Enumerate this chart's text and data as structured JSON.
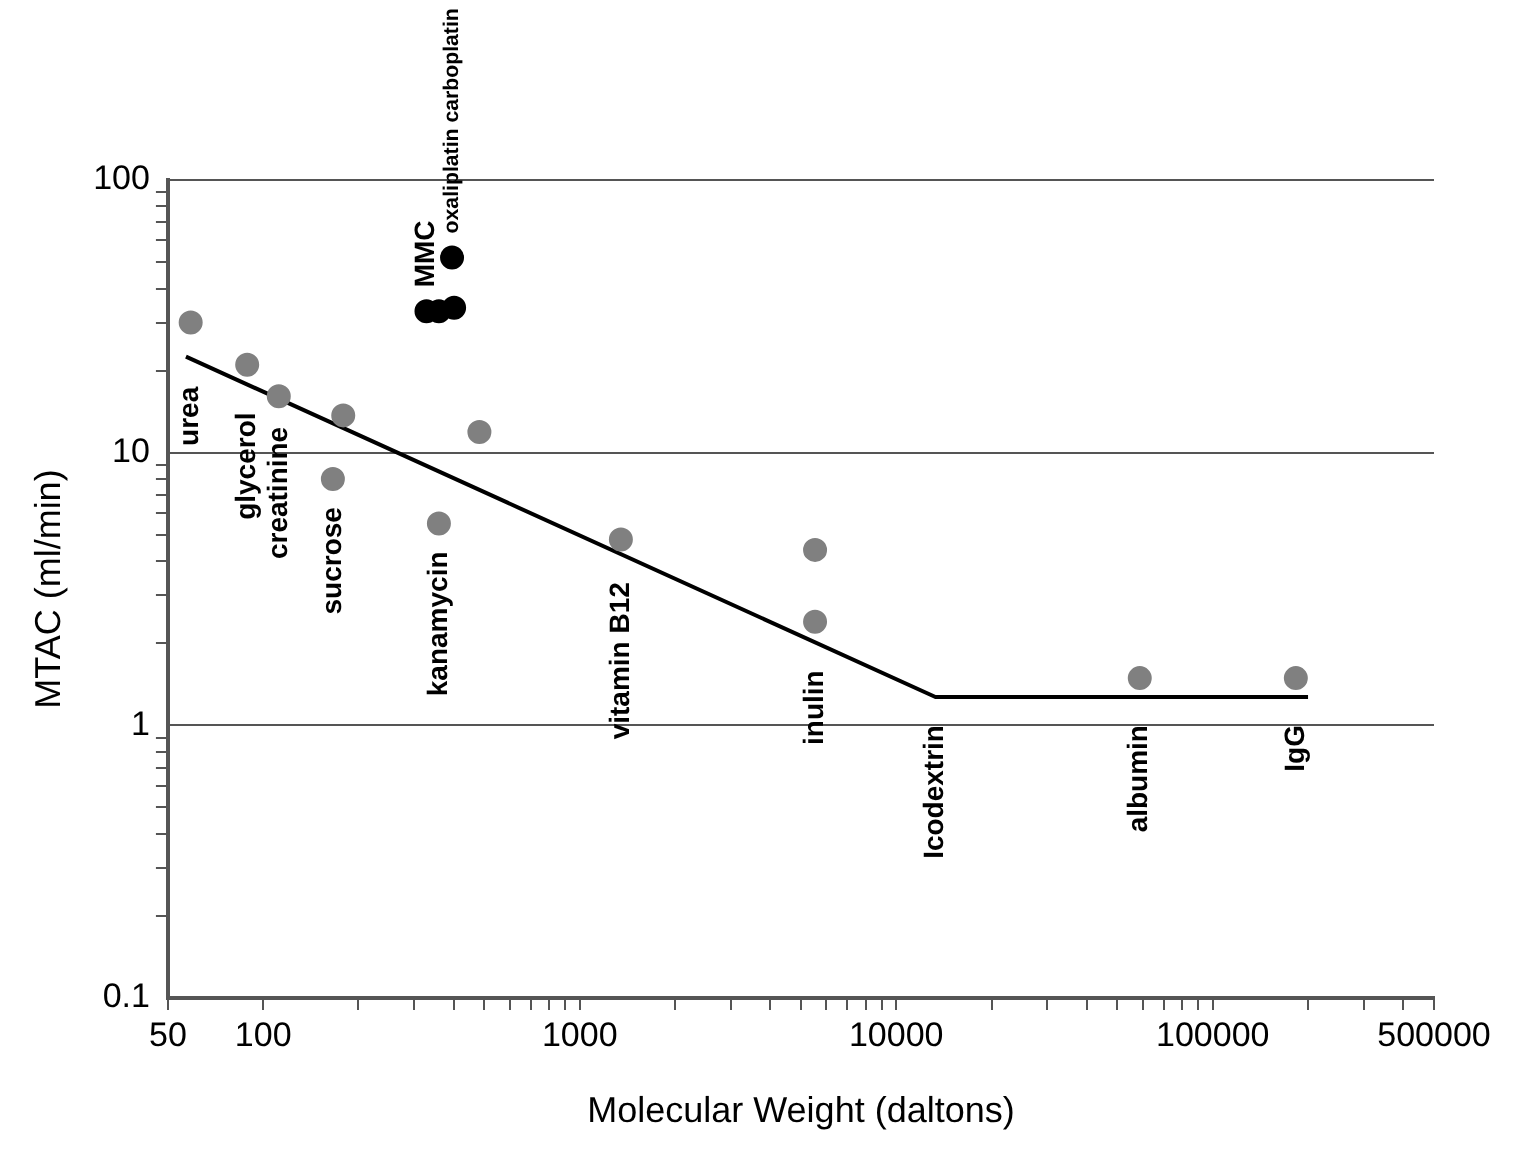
{
  "chart_data": {
    "type": "scatter",
    "xlabel": "Molecular Weight (daltons)",
    "ylabel": "MTAC (ml/min)",
    "log": "xy",
    "grid": "y",
    "legend": false,
    "marker": "circle",
    "xlim": [
      50,
      500000
    ],
    "ylim": [
      0.1,
      100
    ],
    "xticks": [
      50,
      100,
      {
        "value": 200,
        "label": null
      },
      {
        "value": 300,
        "label": null
      },
      {
        "value": 400,
        "label": null
      },
      {
        "value": 500,
        "label": null
      },
      {
        "value": 600,
        "label": null
      },
      {
        "value": 700,
        "label": null
      },
      {
        "value": 800,
        "label": null
      },
      {
        "value": 900,
        "label": null
      },
      1000,
      {
        "value": 2000,
        "label": null
      },
      {
        "value": 3000,
        "label": null
      },
      {
        "value": 4000,
        "label": null
      },
      {
        "value": 5000,
        "label": null
      },
      {
        "value": 6000,
        "label": null
      },
      {
        "value": 7000,
        "label": null
      },
      {
        "value": 8000,
        "label": null
      },
      {
        "value": 9000,
        "label": null
      },
      10000,
      {
        "value": 20000,
        "label": null
      },
      {
        "value": 30000,
        "label": null
      },
      {
        "value": 40000,
        "label": null
      },
      {
        "value": 50000,
        "label": null
      },
      {
        "value": 60000,
        "label": null
      },
      {
        "value": 70000,
        "label": null
      },
      {
        "value": 80000,
        "label": null
      },
      {
        "value": 90000,
        "label": null
      },
      100000,
      {
        "value": 200000,
        "label": null
      },
      {
        "value": 300000,
        "label": null
      },
      {
        "value": 400000,
        "label": null
      },
      500000
    ],
    "yticks": [
      0.1,
      {
        "value": 0.2,
        "label": null
      },
      {
        "value": 0.3,
        "label": null
      },
      {
        "value": 0.4,
        "label": null
      },
      {
        "value": 0.5,
        "label": null
      },
      {
        "value": 0.6,
        "label": null
      },
      {
        "value": 0.7,
        "label": null
      },
      {
        "value": 0.8,
        "label": null
      },
      {
        "value": 0.9,
        "label": null
      },
      1,
      {
        "value": 2,
        "label": null
      },
      {
        "value": 3,
        "label": null
      },
      {
        "value": 4,
        "label": null
      },
      {
        "value": 5,
        "label": null
      },
      {
        "value": 6,
        "label": null
      },
      {
        "value": 7,
        "label": null
      },
      {
        "value": 8,
        "label": null
      },
      {
        "value": 9,
        "label": null
      },
      10,
      {
        "value": 20,
        "label": null
      },
      {
        "value": 30,
        "label": null
      },
      {
        "value": 40,
        "label": null
      },
      {
        "value": 50,
        "label": null
      },
      {
        "value": 60,
        "label": null
      },
      {
        "value": 70,
        "label": null
      },
      {
        "value": 80,
        "label": null
      },
      {
        "value": 90,
        "label": null
      },
      100
    ],
    "series": [
      {
        "color": "#808080",
        "x": [
          59,
          89,
          112,
          179,
          166,
          359,
          482,
          1349,
          5540,
          5540,
          58800,
          183000
        ],
        "values": [
          30,
          21,
          16.1,
          13.7,
          8,
          5.5,
          11.9,
          4.8,
          4.4,
          2.4,
          1.49,
          1.49
        ]
      },
      {
        "color": "#000000",
        "x": [
          328,
          359,
          401,
          395
        ],
        "values": [
          33,
          33,
          34,
          52
        ]
      },
      {
        "type": "line",
        "color": "#000000",
        "marker": "none",
        "x": [
          57,
          13300,
          200000
        ],
        "values": [
          22.5,
          1.27,
          1.27
        ]
      }
    ],
    "annotations": [
      {
        "text": "urea",
        "x": 59,
        "y": 30
      },
      {
        "text": "glycerol",
        "x": 89,
        "y": 21
      },
      {
        "text": "creatinine",
        "x": 112,
        "y": 16.1
      },
      {
        "text": "sucrose",
        "x": 166,
        "y": 8
      },
      {
        "text": "kanamycin",
        "x": 359,
        "y": 5.5
      },
      {
        "text": "vitamin B12",
        "x": 1349,
        "y": 4.8
      },
      {
        "text": "inulin",
        "x": 5540,
        "y": 2.4
      },
      {
        "text": "Icodextrin",
        "x": 13300,
        "y": 1.27
      },
      {
        "text": "albumin",
        "x": 58800,
        "y": 1.49
      },
      {
        "text": "IgG",
        "x": 183000,
        "y": 1.49
      },
      {
        "text": "MMC",
        "x": 328,
        "y": 33
      },
      {
        "text": "oxaliplatin carboplatin",
        "x": 395,
        "y": 52
      }
    ]
  }
}
